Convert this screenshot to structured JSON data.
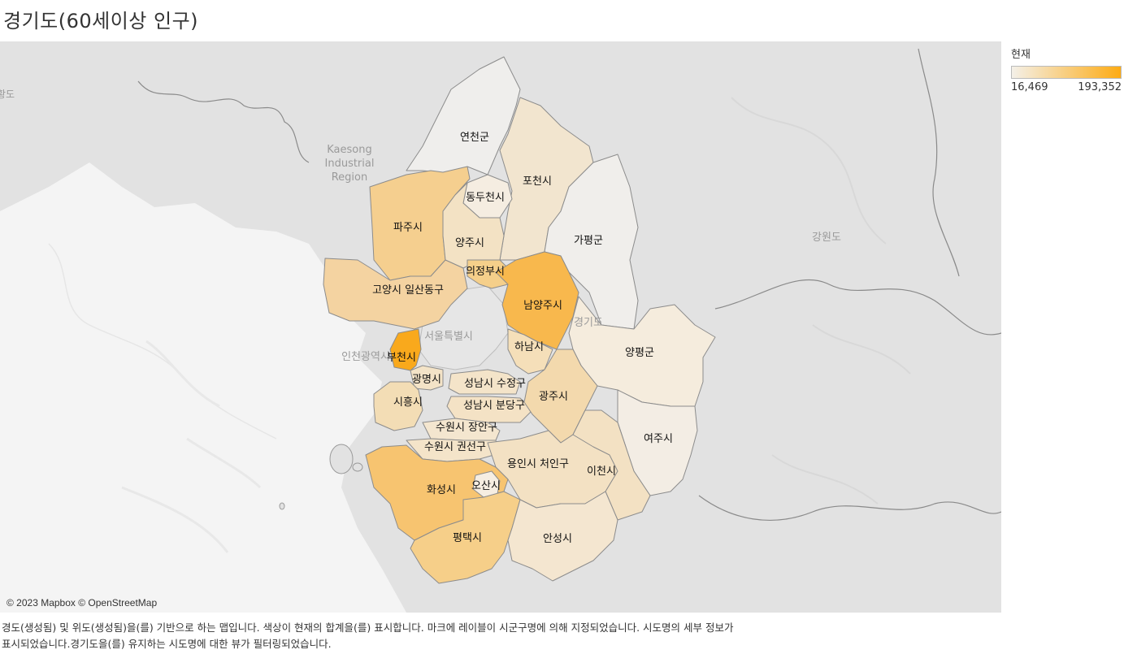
{
  "title": "경기도(60세이상 인구)",
  "legend": {
    "title": "현재",
    "min_label": "16,469",
    "max_label": "193,352",
    "color_min": "#f4f0e8",
    "color_max": "#fdab14"
  },
  "attribution": "© 2023 Mapbox © OpenStreetMap",
  "caption": {
    "line1": "경도(생성됨) 및 위도(생성됨)을(를) 기반으로 하는 맵입니다. 색상이 현재의 합계을(를) 표시합니다. 마크에 레이블이 시군구명에 의해 지정되었습니다. 시도명의 세부 정보가",
    "line2": "표시되었습니다.경기도을(를) 유지하는 시도명에 대한 뷰가 필터링되었습니다."
  },
  "background_labels": {
    "kaesong_1": "Kaesong",
    "kaesong_2": "Industrial",
    "kaesong_3": "Region",
    "gangwon": "강원도",
    "seoul": "서울특별시",
    "incheon": "인천광역시",
    "gyeonggi": "경기도",
    "hwanghae": "황도"
  },
  "regions": {
    "yeoncheon": "연천군",
    "pocheon": "포천시",
    "dongducheon": "동두천시",
    "paju": "파주시",
    "yangju": "양주시",
    "gapyeong": "가평군",
    "uijeongbu": "의정부시",
    "goyang": "고양시 일산동구",
    "namyangju": "남양주시",
    "bucheon": "부천시",
    "hanam": "하남시",
    "yangpyeong": "양평군",
    "gwangmyeong": "광명시",
    "sujeong": "성남시 수정구",
    "siheung": "시흥시",
    "bundang": "성남시 분당구",
    "gwangju": "광주시",
    "jangan": "수원시 장안구",
    "yeoju": "여주시",
    "gwonseon": "수원시 권선구",
    "cheoin": "용인시 처인구",
    "icheon": "이천시",
    "hwaseong": "화성시",
    "osan": "오산시",
    "pyeongtaek": "평택시",
    "anseong": "안성시"
  }
}
